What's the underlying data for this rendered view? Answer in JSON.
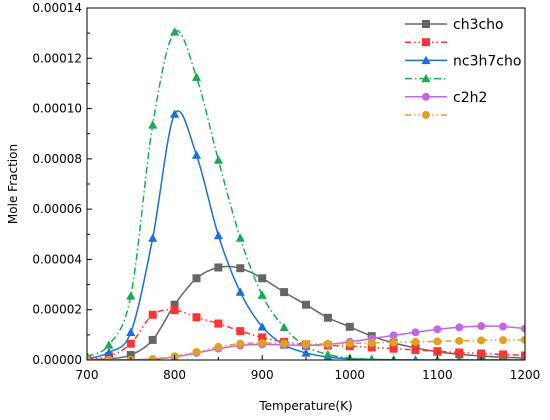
{
  "chart_data": {
    "type": "line",
    "xlabel": "Temperature(K)",
    "ylabel": "Mole Fraction",
    "xlim": [
      700,
      1200
    ],
    "ylim": [
      0,
      0.00014
    ],
    "xticks": [
      700,
      800,
      900,
      1000,
      1100,
      1200
    ],
    "xtick_labels": [
      "700",
      "800",
      "900",
      "1000",
      "1100",
      "1200"
    ],
    "yticks": [
      0,
      2e-05,
      4e-05,
      6e-05,
      8e-05,
      0.0001,
      0.00012,
      0.00014
    ],
    "ytick_labels": [
      "0.00000",
      "0.00002",
      "0.00004",
      "0.00006",
      "0.00008",
      "0.00010",
      "0.00012",
      "0.00014"
    ],
    "grid": false,
    "legend_position": "top-right",
    "series": [
      {
        "name": "ch3cho",
        "color": "#666666",
        "marker": "square",
        "line_style": "solid",
        "x": [
          700,
          725,
          750,
          775,
          800,
          825,
          850,
          875,
          900,
          925,
          950,
          975,
          1000,
          1025,
          1050,
          1075,
          1100,
          1125,
          1150,
          1175,
          1200
        ],
        "y": [
          1e-07,
          5e-07,
          2e-06,
          8e-06,
          2.2e-05,
          3.25e-05,
          3.68e-05,
          3.65e-05,
          3.25e-05,
          2.7e-05,
          2.2e-05,
          1.68e-05,
          1.32e-05,
          9.5e-06,
          6.8e-06,
          4.8e-06,
          3.3e-06,
          2.3e-06,
          1.6e-06,
          1.1e-06,
          8e-07
        ]
      },
      {
        "color": "#ff3333",
        "marker": "square",
        "line_style": "dash-dot-dot",
        "x": [
          700,
          725,
          750,
          775,
          800,
          825,
          850,
          875,
          900,
          925,
          950,
          975,
          1000,
          1025,
          1050,
          1075,
          1100,
          1125,
          1150,
          1175,
          1200
        ],
        "y": [
          2e-07,
          1.5e-06,
          6.5e-06,
          1.8e-05,
          1.98e-05,
          1.7e-05,
          1.45e-05,
          1.15e-05,
          9e-06,
          7.2e-06,
          6.2e-06,
          5.8e-06,
          5.5e-06,
          5e-06,
          4.5e-06,
          4e-06,
          3.5e-06,
          3e-06,
          2.6e-06,
          2.2e-06,
          1.8e-06
        ]
      },
      {
        "name": "nc3h7cho",
        "color": "#1a6fd6",
        "marker": "triangle",
        "line_style": "solid",
        "x": [
          700,
          725,
          750,
          775,
          800,
          825,
          850,
          875,
          900,
          925,
          950,
          975,
          1000,
          1025,
          1050,
          1075,
          1100,
          1125,
          1150,
          1175,
          1200
        ],
        "y": [
          5e-07,
          3e-06,
          1.1e-05,
          4.85e-05,
          9.78e-05,
          8.15e-05,
          4.95e-05,
          2.7e-05,
          1.32e-05,
          6e-06,
          2.8e-06,
          1.2e-06,
          5e-07,
          2e-07,
          1e-07,
          0,
          0,
          0,
          0,
          0,
          0
        ]
      },
      {
        "color": "#1aaa55",
        "marker": "triangle",
        "line_style": "dash-dot",
        "x": [
          700,
          725,
          750,
          775,
          800,
          825,
          850,
          875,
          900,
          925,
          950,
          975,
          1000,
          1025,
          1050,
          1075,
          1100,
          1125,
          1150,
          1175,
          1200
        ],
        "y": [
          1.5e-06,
          6e-06,
          2.55e-05,
          9.35e-05,
          0.0001305,
          0.0001125,
          7.95e-05,
          4.85e-05,
          2.58e-05,
          1.3e-05,
          5.5e-06,
          2.2e-06,
          8e-07,
          3e-07,
          1e-07,
          0,
          0,
          0,
          0,
          0,
          0
        ]
      },
      {
        "name": "c2h2",
        "color": "#c266e6",
        "marker": "circle",
        "line_style": "solid",
        "x": [
          700,
          725,
          750,
          775,
          800,
          825,
          850,
          875,
          900,
          925,
          950,
          975,
          1000,
          1025,
          1050,
          1075,
          1100,
          1125,
          1150,
          1175,
          1200
        ],
        "y": [
          0,
          0,
          1e-07,
          3e-07,
          1.2e-06,
          2.8e-06,
          4.5e-06,
          5.8e-06,
          6.2e-06,
          6e-06,
          5.8e-06,
          6.2e-06,
          7.2e-06,
          8.5e-06,
          9.8e-06,
          1.1e-05,
          1.22e-05,
          1.3e-05,
          1.35e-05,
          1.33e-05,
          1.25e-05
        ]
      },
      {
        "color": "#e0a020",
        "marker": "circle",
        "line_style": "dash-dot-dot",
        "x": [
          700,
          725,
          750,
          775,
          800,
          825,
          850,
          875,
          900,
          925,
          950,
          975,
          1000,
          1025,
          1050,
          1075,
          1100,
          1125,
          1150,
          1175,
          1200
        ],
        "y": [
          0,
          0,
          1e-07,
          4e-07,
          1.5e-06,
          3.2e-06,
          5.2e-06,
          6.5e-06,
          6.8e-06,
          6.6e-06,
          6.4e-06,
          6.4e-06,
          6.6e-06,
          6.8e-06,
          7e-06,
          7.2e-06,
          7.4e-06,
          7.6e-06,
          7.8e-06,
          7.9e-06,
          8e-06
        ]
      }
    ]
  }
}
